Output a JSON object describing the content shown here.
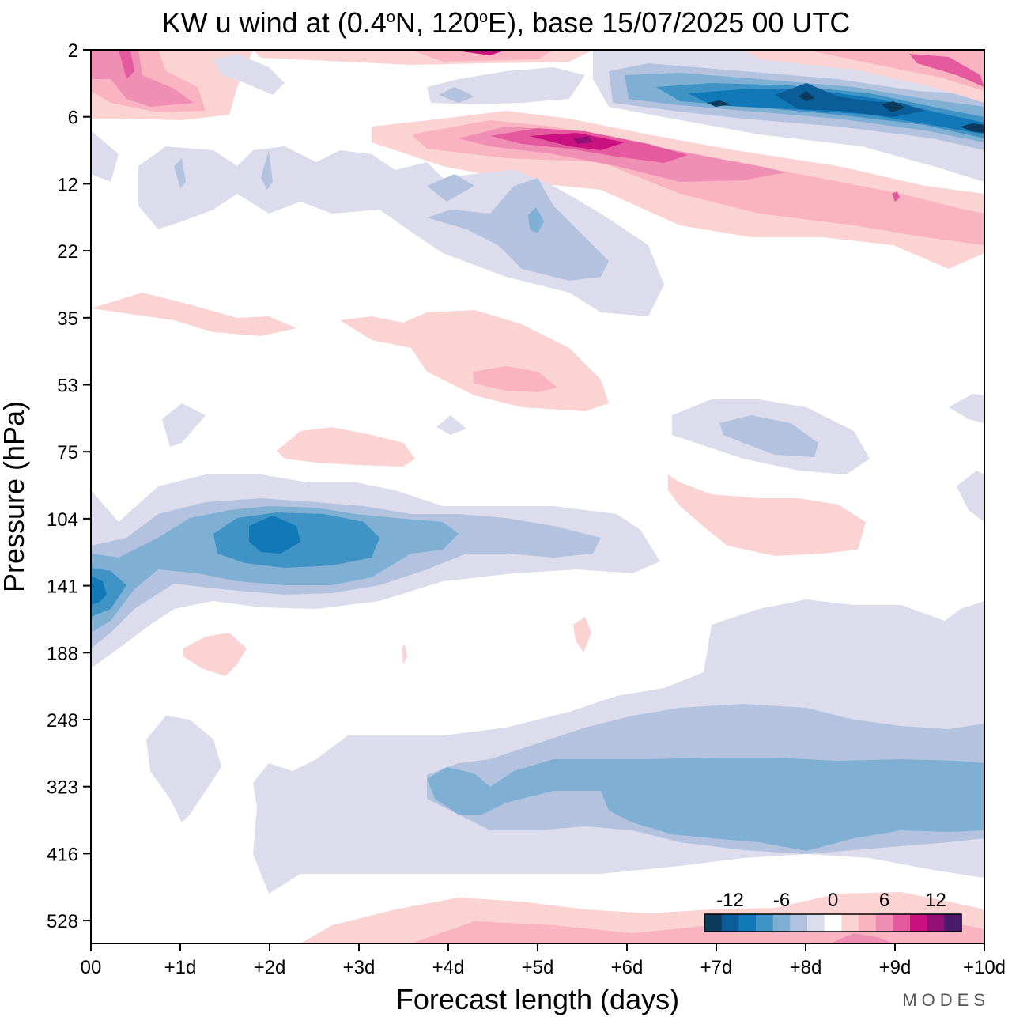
{
  "chart_data": {
    "type": "heatmap",
    "title": "KW u wind at (0.4°N, 120°E),  base 15/07/2025  00 UTC",
    "title_parts": {
      "pre": "KW u wind at (0.4",
      "deg1": "o",
      "mid": "N, 120",
      "deg2": "o",
      "post": "E),  base 15/07/2025  00 UTC"
    },
    "xlabel": "Forecast length (days)",
    "ylabel": "Pressure (hPa)",
    "x_ticks": [
      "00",
      "+1d",
      "+2d",
      "+3d",
      "+4d",
      "+5d",
      "+6d",
      "+7d",
      "+8d",
      "+9d",
      "+10d"
    ],
    "y_ticks": [
      "2",
      "6",
      "12",
      "22",
      "35",
      "53",
      "75",
      "104",
      "141",
      "188",
      "248",
      "323",
      "416",
      "528"
    ],
    "xlim_days": [
      0,
      10
    ],
    "y_scale": "log-pressure, reversed",
    "grid": false,
    "colorbar": {
      "placement": "bottom-right inside plot",
      "tick_labels": [
        "-12",
        "-6",
        "0",
        "6",
        "12"
      ],
      "tick_values": [
        -12,
        -6,
        0,
        6,
        12
      ],
      "levels": [
        -15,
        -13,
        -11,
        -9,
        -7,
        -5,
        -3,
        -1,
        1,
        3,
        5,
        7,
        9,
        11,
        13,
        15
      ],
      "colors": [
        "#0c3a5c",
        "#0a5d99",
        "#1279b9",
        "#3f93c5",
        "#7fafd3",
        "#b3c3df",
        "#dcdcec",
        "#ffffff",
        "#fbd3d3",
        "#f9b3c1",
        "#f08fb4",
        "#e5599f",
        "#c9127f",
        "#931078",
        "#4a1a6b"
      ]
    },
    "features": [
      {
        "sign": "negative",
        "level": "deep blue, about -12 to -14",
        "x_days": [
          6.0,
          10.0
        ],
        "pressure_hPa": [
          3,
          8
        ],
        "cores_days": [
          8.0,
          9.0
        ]
      },
      {
        "sign": "positive",
        "level": "magenta, about 10 to 12",
        "x_days": [
          3.0,
          10.0
        ],
        "pressure_hPa": [
          6,
          22
        ],
        "core_day": 5.5
      },
      {
        "sign": "positive",
        "level": "magenta, about 6 to 12",
        "x_days": [
          0.0,
          1.5
        ],
        "pressure_hPa": [
          2,
          6
        ]
      },
      {
        "sign": "positive",
        "level": "pink, about 4 to 10",
        "x_days": [
          7.5,
          10.0
        ],
        "pressure_hPa": [
          2,
          4
        ]
      },
      {
        "sign": "negative",
        "level": "light blue, about -2 to -6",
        "x_days": [
          0.5,
          6.5
        ],
        "pressure_hPa": [
          8,
          35
        ]
      },
      {
        "sign": "positive",
        "level": "light pink, about 2 to 6",
        "x_days": [
          3.5,
          5.8
        ],
        "pressure_hPa": [
          35,
          60
        ]
      },
      {
        "sign": "negative",
        "level": "light blue, about -2 to -6",
        "x_days": [
          6.5,
          8.7
        ],
        "pressure_hPa": [
          55,
          90
        ]
      },
      {
        "sign": "positive",
        "level": "light pink, about 2 to 4",
        "x_days": [
          6.5,
          8.5
        ],
        "pressure_hPa": [
          95,
          135
        ]
      },
      {
        "sign": "negative",
        "level": "blue, about -10 to -12",
        "x_days": [
          0.0,
          6.3
        ],
        "pressure_hPa": [
          85,
          190
        ],
        "core_day": 2.0
      },
      {
        "sign": "negative",
        "level": "light blue, about -2 to -8",
        "x_days": [
          2.5,
          10.0
        ],
        "pressure_hPa": [
          155,
          470
        ]
      },
      {
        "sign": "positive",
        "level": "light pink, about 2 to 6",
        "x_days": [
          2.3,
          10.0
        ],
        "pressure_hPa": [
          480,
          600
        ]
      }
    ]
  },
  "brand": "MODES"
}
